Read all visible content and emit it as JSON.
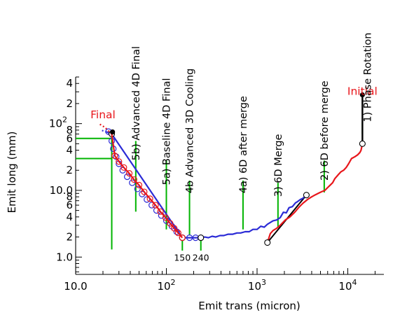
{
  "chart_data": {
    "type": "line",
    "xlabel": "Emit trans   (micron)",
    "ylabel": "Emit long (mm)",
    "x_scale": "log",
    "y_scale": "log",
    "xlim": [
      10,
      25000
    ],
    "ylim": [
      0.55,
      500
    ],
    "x_ticks": [
      {
        "value": 10,
        "label": "10.0",
        "exp": ""
      },
      {
        "value": 100,
        "label": "10",
        "exp": "2"
      },
      {
        "value": 1000,
        "label": "10",
        "exp": "3"
      },
      {
        "value": 10000,
        "label": "10",
        "exp": "4"
      }
    ],
    "y_ticks": [
      {
        "value": 1,
        "label": "1.0",
        "exp": ""
      },
      {
        "value": 2,
        "label": "2",
        "exp": ""
      },
      {
        "value": 4,
        "label": "4",
        "exp": ""
      },
      {
        "value": 6,
        "label": "6",
        "exp": ""
      },
      {
        "value": 8,
        "label": "8",
        "exp": ""
      },
      {
        "value": 10,
        "label": "10.0",
        "exp": ""
      },
      {
        "value": 20,
        "label": "2",
        "exp": ""
      },
      {
        "value": 40,
        "label": "4",
        "exp": ""
      },
      {
        "value": 60,
        "label": "6",
        "exp": ""
      },
      {
        "value": 80,
        "label": "8",
        "exp": ""
      },
      {
        "value": 100,
        "label": "10",
        "exp": "2"
      },
      {
        "value": 200,
        "label": "2",
        "exp": ""
      },
      {
        "value": 400,
        "label": "4",
        "exp": ""
      }
    ],
    "endpoint_labels": [
      {
        "text": "Initial",
        "x": 14500,
        "y": 270,
        "color": "#e8161b"
      },
      {
        "text": "Final",
        "x": 20,
        "y": 120,
        "color": "#e8161b"
      }
    ],
    "stages": [
      {
        "label": "1) Phase Rotation",
        "x": 16500,
        "y": 105
      },
      {
        "label": "2) 6D before merge",
        "x": 5500,
        "y": 14
      },
      {
        "label": "3) 6D Merge",
        "x": 1700,
        "y": 8
      },
      {
        "label": "4a) 6D after merge",
        "x": 700,
        "y": 9
      },
      {
        "label": "4b Advanced 3D Cooling",
        "x": 180,
        "y": 9
      },
      {
        "label": "5a) Baseline 4D Final",
        "x": 100,
        "y": 12
      },
      {
        "label": "5b) Advanced 4D Final",
        "x": 46,
        "y": 28
      }
    ],
    "guide_lines": [
      {
        "orientation": "v",
        "x": 14500,
        "y_from": 70,
        "y_to": 105,
        "color": "#00b400"
      },
      {
        "orientation": "v",
        "x": 5500,
        "y_from": 9.3,
        "y_to": 28,
        "color": "#00b400"
      },
      {
        "orientation": "v",
        "x": 1700,
        "y_from": 2.8,
        "y_to": 13,
        "color": "#00b400"
      },
      {
        "orientation": "v",
        "x": 700,
        "y_from": 2.6,
        "y_to": 14,
        "color": "#00b400"
      },
      {
        "orientation": "v",
        "x": 180,
        "y_from": 2.1,
        "y_to": 14,
        "color": "#00b400"
      },
      {
        "orientation": "v",
        "x": 100,
        "y_from": 2.6,
        "y_to": 28,
        "color": "#00b400"
      },
      {
        "orientation": "v",
        "x": 46,
        "y_from": 4.8,
        "y_to": 55,
        "color": "#00b400"
      },
      {
        "orientation": "v",
        "x": 25,
        "y_from": 1.3,
        "y_to": 75,
        "color": "#00b400"
      },
      {
        "orientation": "v",
        "x": 150,
        "y_from": 1.25,
        "y_to": 1.95,
        "color": "#00b400"
      },
      {
        "orientation": "v",
        "x": 240,
        "y_from": 1.25,
        "y_to": 1.95,
        "color": "#00b400"
      },
      {
        "orientation": "h",
        "y": 60,
        "x_from": 10,
        "x_to": 25,
        "color": "#00b400"
      },
      {
        "orientation": "h",
        "y": 30,
        "x_from": 10,
        "x_to": 25,
        "color": "#00b400"
      }
    ],
    "bottom_labels": [
      {
        "text": "150",
        "x": 150,
        "y": 1.2
      },
      {
        "text": "240",
        "x": 240,
        "y": 1.2
      }
    ],
    "phase_rotation": {
      "x": 14500,
      "y_from": 50,
      "y_to": 270,
      "color": "#000000"
    },
    "merge_line": {
      "x": [
        1300,
        3500
      ],
      "y": [
        1.65,
        8.5
      ],
      "color": "#000000"
    },
    "series": [
      {
        "color": "#e8161b",
        "points": [
          [
            14500,
            50
          ],
          [
            14000,
            40
          ],
          [
            13600,
            37
          ],
          [
            12800,
            34
          ],
          [
            12000,
            32
          ],
          [
            11000,
            30
          ],
          [
            10200,
            25
          ],
          [
            9600,
            22
          ],
          [
            9000,
            20
          ],
          [
            8400,
            19
          ],
          [
            7800,
            17
          ],
          [
            7200,
            15
          ],
          [
            6800,
            13
          ],
          [
            6400,
            12
          ],
          [
            6000,
            11
          ],
          [
            5600,
            10
          ],
          [
            5200,
            9.6
          ],
          [
            4800,
            9.1
          ],
          [
            4400,
            8.6
          ],
          [
            4000,
            8.0
          ],
          [
            3600,
            7.3
          ],
          [
            3200,
            6.4
          ],
          [
            2900,
            5.6
          ],
          [
            2600,
            4.7
          ],
          [
            2300,
            4.0
          ],
          [
            2050,
            3.6
          ],
          [
            1800,
            3.0
          ],
          [
            1650,
            2.7
          ],
          [
            1500,
            2.5
          ],
          [
            1400,
            2.25
          ],
          [
            1300,
            1.65
          ]
        ],
        "markers": [
          [
            14500,
            50
          ],
          [
            1300,
            1.65
          ]
        ]
      },
      {
        "color": "#2b2bd6",
        "points": [
          [
            3500,
            8.5
          ],
          [
            3200,
            7.6
          ],
          [
            3000,
            7.3
          ],
          [
            2800,
            6.8
          ],
          [
            2650,
            6.5
          ],
          [
            2450,
            5.7
          ],
          [
            2250,
            5.5
          ],
          [
            2100,
            4.6
          ],
          [
            1950,
            4.7
          ],
          [
            1800,
            3.9
          ],
          [
            1650,
            3.6
          ],
          [
            1500,
            3.5
          ],
          [
            1400,
            3.3
          ],
          [
            1300,
            3.1
          ],
          [
            1200,
            2.8
          ],
          [
            1100,
            2.9
          ],
          [
            1000,
            2.6
          ],
          [
            900,
            2.6
          ],
          [
            820,
            2.4
          ],
          [
            740,
            2.4
          ],
          [
            660,
            2.3
          ],
          [
            600,
            2.3
          ],
          [
            540,
            2.2
          ],
          [
            480,
            2.2
          ],
          [
            430,
            2.1
          ],
          [
            390,
            2.1
          ],
          [
            350,
            2.0
          ],
          [
            320,
            2.05
          ],
          [
            290,
            1.95
          ],
          [
            265,
            2.0
          ],
          [
            240,
            1.95
          ],
          [
            150,
            1.95
          ],
          [
            25,
            70
          ],
          [
            22,
            75
          ]
        ],
        "markers": [
          [
            3500,
            8.5
          ],
          [
            240,
            1.95
          ],
          [
            150,
            1.95
          ],
          [
            25,
            70
          ]
        ],
        "circles": [
          [
            210,
            1.95
          ],
          [
            180,
            1.95
          ],
          [
            150,
            1.95
          ],
          [
            130,
            2.4
          ],
          [
            115,
            2.9
          ],
          [
            100,
            3.5
          ],
          [
            88,
            4.2
          ],
          [
            78,
            5.0
          ],
          [
            69,
            6.0
          ],
          [
            61,
            7.3
          ],
          [
            54,
            8.8
          ],
          [
            48,
            10.5
          ],
          [
            42,
            13
          ],
          [
            37,
            16
          ],
          [
            33,
            20
          ],
          [
            30,
            25
          ],
          [
            28,
            32
          ],
          [
            26,
            42
          ],
          [
            25,
            55
          ],
          [
            23,
            76
          ]
        ],
        "tail_dotted": [
          [
            22,
            75
          ],
          [
            19,
            80
          ]
        ]
      },
      {
        "color": "#e8161b",
        "points": [
          [
            150,
            1.95
          ],
          [
            135,
            2.3
          ],
          [
            122,
            2.7
          ],
          [
            110,
            3.2
          ],
          [
            98,
            3.9
          ],
          [
            86,
            4.8
          ],
          [
            76,
            6.0
          ],
          [
            66,
            7.5
          ],
          [
            57,
            9.5
          ],
          [
            50,
            12
          ],
          [
            44,
            14.5
          ],
          [
            39,
            18
          ],
          [
            34,
            22
          ],
          [
            30,
            27
          ],
          [
            27,
            33
          ],
          [
            25,
            70
          ]
        ],
        "circles": [
          [
            150,
            1.95
          ],
          [
            135,
            2.3
          ],
          [
            122,
            2.7
          ],
          [
            110,
            3.2
          ],
          [
            98,
            3.9
          ],
          [
            86,
            4.8
          ],
          [
            76,
            6.0
          ],
          [
            66,
            7.5
          ],
          [
            57,
            9.5
          ],
          [
            50,
            12
          ],
          [
            44,
            14.5
          ],
          [
            39,
            18
          ],
          [
            34,
            22
          ],
          [
            30,
            27
          ],
          [
            27,
            33
          ]
        ],
        "tail_dotted": [
          [
            25,
            70
          ],
          [
            21,
            88
          ],
          [
            18,
            100
          ]
        ]
      }
    ],
    "final_dot": {
      "x": 25.5,
      "y": 75
    }
  }
}
